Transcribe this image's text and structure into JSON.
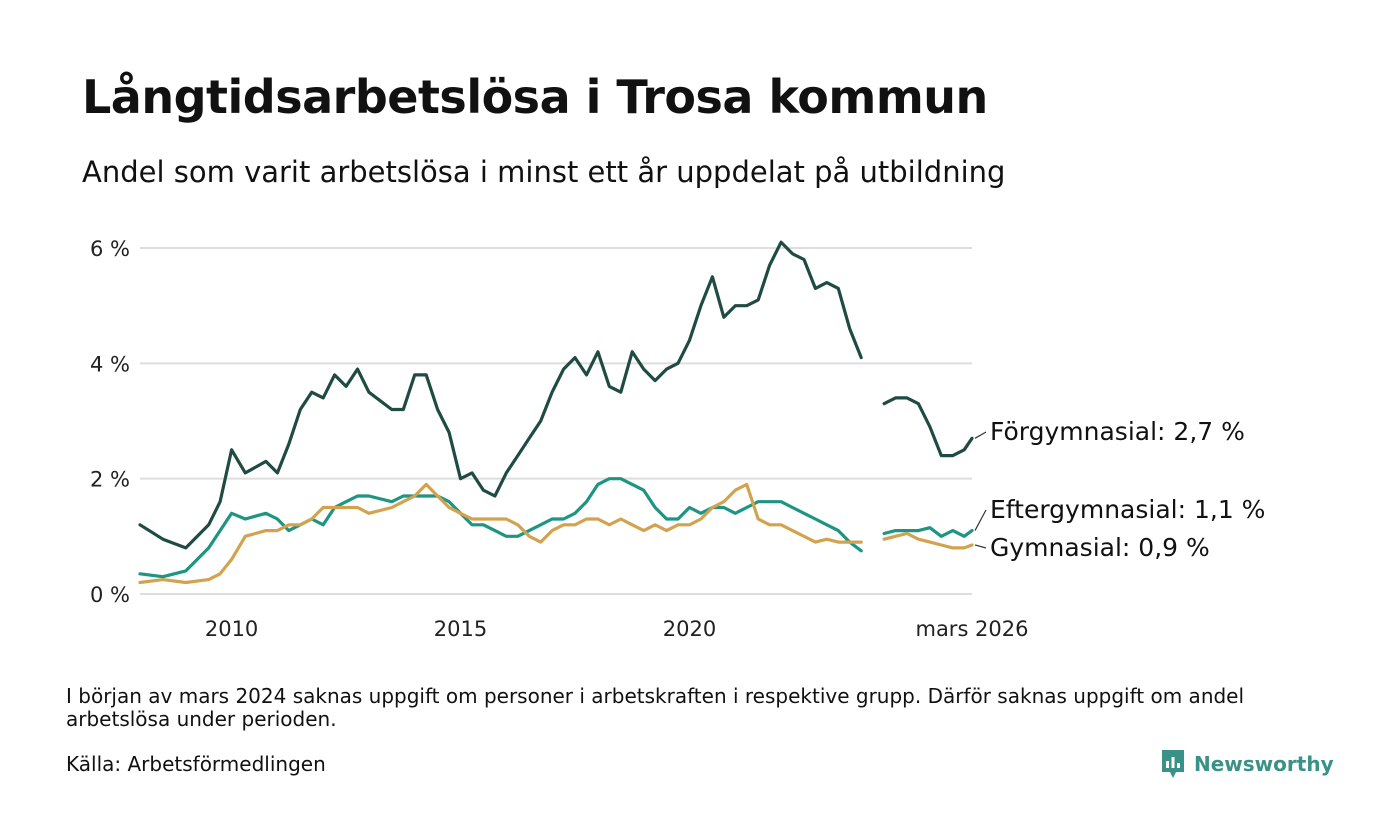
{
  "title": "Långtidsarbetslösa i Trosa kommun",
  "subtitle": "Andel som varit arbetslösa i minst ett år uppdelat på utbildning",
  "note": "I början av mars 2024 saknas uppgift om personer i arbetskraften i respektive grupp. Därför saknas uppgift om andel arbetslösa under perioden.",
  "source": "Källa: Arbetsförmedlingen",
  "brand": {
    "name": "Newsworthy",
    "color": "#3a9187"
  },
  "chart_data": {
    "type": "line",
    "title": "Långtidsarbetslösa i Trosa kommun",
    "xlabel": "",
    "ylabel": "",
    "ylim": [
      0,
      6.2
    ],
    "xlim": [
      2008.0,
      2026.17
    ],
    "yticks": [
      0,
      2,
      4,
      6
    ],
    "ytick_labels": [
      "0 %",
      "2 %",
      "4 %",
      "6 %"
    ],
    "xticks": [
      2010,
      2015,
      2020,
      2026.17
    ],
    "xtick_labels": [
      "2010",
      "2015",
      "2020",
      "mars 2026"
    ],
    "gap": [
      2023.8,
      2024.2
    ],
    "series": [
      {
        "name": "Förgymnasial",
        "label": "Förgymnasial: 2,7 %",
        "color": "#1f4b43",
        "points": [
          [
            2008.0,
            1.2
          ],
          [
            2008.5,
            0.95
          ],
          [
            2009.0,
            0.8
          ],
          [
            2009.5,
            1.2
          ],
          [
            2009.75,
            1.6
          ],
          [
            2010.0,
            2.5
          ],
          [
            2010.3,
            2.1
          ],
          [
            2010.75,
            2.3
          ],
          [
            2011.0,
            2.1
          ],
          [
            2011.25,
            2.6
          ],
          [
            2011.5,
            3.2
          ],
          [
            2011.75,
            3.5
          ],
          [
            2012.0,
            3.4
          ],
          [
            2012.25,
            3.8
          ],
          [
            2012.5,
            3.6
          ],
          [
            2012.75,
            3.9
          ],
          [
            2013.0,
            3.5
          ],
          [
            2013.5,
            3.2
          ],
          [
            2013.75,
            3.2
          ],
          [
            2014.0,
            3.8
          ],
          [
            2014.25,
            3.8
          ],
          [
            2014.5,
            3.2
          ],
          [
            2014.75,
            2.8
          ],
          [
            2015.0,
            2.0
          ],
          [
            2015.25,
            2.1
          ],
          [
            2015.5,
            1.8
          ],
          [
            2015.75,
            1.7
          ],
          [
            2016.0,
            2.1
          ],
          [
            2016.25,
            2.4
          ],
          [
            2016.5,
            2.7
          ],
          [
            2016.75,
            3.0
          ],
          [
            2017.0,
            3.5
          ],
          [
            2017.25,
            3.9
          ],
          [
            2017.5,
            4.1
          ],
          [
            2017.75,
            3.8
          ],
          [
            2018.0,
            4.2
          ],
          [
            2018.25,
            3.6
          ],
          [
            2018.5,
            3.5
          ],
          [
            2018.75,
            4.2
          ],
          [
            2019.0,
            3.9
          ],
          [
            2019.25,
            3.7
          ],
          [
            2019.5,
            3.9
          ],
          [
            2019.75,
            4.0
          ],
          [
            2020.0,
            4.4
          ],
          [
            2020.25,
            5.0
          ],
          [
            2020.5,
            5.5
          ],
          [
            2020.75,
            4.8
          ],
          [
            2021.0,
            5.0
          ],
          [
            2021.25,
            5.0
          ],
          [
            2021.5,
            5.1
          ],
          [
            2021.75,
            5.7
          ],
          [
            2022.0,
            6.1
          ],
          [
            2022.25,
            5.9
          ],
          [
            2022.5,
            5.8
          ],
          [
            2022.75,
            5.3
          ],
          [
            2023.0,
            5.4
          ],
          [
            2023.25,
            5.3
          ],
          [
            2023.5,
            4.6
          ],
          [
            2023.75,
            4.1
          ],
          [
            2024.25,
            3.3
          ],
          [
            2024.5,
            3.4
          ],
          [
            2024.75,
            3.4
          ],
          [
            2025.0,
            3.3
          ],
          [
            2025.25,
            2.9
          ],
          [
            2025.5,
            2.4
          ],
          [
            2025.75,
            2.4
          ],
          [
            2026.0,
            2.5
          ],
          [
            2026.17,
            2.7
          ]
        ]
      },
      {
        "name": "Eftergymnasial",
        "label": "Eftergymnasial: 1,1 %",
        "color": "#1d9582",
        "points": [
          [
            2008.0,
            0.35
          ],
          [
            2008.5,
            0.3
          ],
          [
            2009.0,
            0.4
          ],
          [
            2009.5,
            0.8
          ],
          [
            2009.75,
            1.1
          ],
          [
            2010.0,
            1.4
          ],
          [
            2010.3,
            1.3
          ],
          [
            2010.75,
            1.4
          ],
          [
            2011.0,
            1.3
          ],
          [
            2011.25,
            1.1
          ],
          [
            2011.5,
            1.2
          ],
          [
            2011.75,
            1.3
          ],
          [
            2012.0,
            1.2
          ],
          [
            2012.25,
            1.5
          ],
          [
            2012.5,
            1.6
          ],
          [
            2012.75,
            1.7
          ],
          [
            2013.0,
            1.7
          ],
          [
            2013.5,
            1.6
          ],
          [
            2013.75,
            1.7
          ],
          [
            2014.0,
            1.7
          ],
          [
            2014.25,
            1.7
          ],
          [
            2014.5,
            1.7
          ],
          [
            2014.75,
            1.6
          ],
          [
            2015.0,
            1.4
          ],
          [
            2015.25,
            1.2
          ],
          [
            2015.5,
            1.2
          ],
          [
            2015.75,
            1.1
          ],
          [
            2016.0,
            1.0
          ],
          [
            2016.25,
            1.0
          ],
          [
            2016.5,
            1.1
          ],
          [
            2016.75,
            1.2
          ],
          [
            2017.0,
            1.3
          ],
          [
            2017.25,
            1.3
          ],
          [
            2017.5,
            1.4
          ],
          [
            2017.75,
            1.6
          ],
          [
            2018.0,
            1.9
          ],
          [
            2018.25,
            2.0
          ],
          [
            2018.5,
            2.0
          ],
          [
            2018.75,
            1.9
          ],
          [
            2019.0,
            1.8
          ],
          [
            2019.25,
            1.5
          ],
          [
            2019.5,
            1.3
          ],
          [
            2019.75,
            1.3
          ],
          [
            2020.0,
            1.5
          ],
          [
            2020.25,
            1.4
          ],
          [
            2020.5,
            1.5
          ],
          [
            2020.75,
            1.5
          ],
          [
            2021.0,
            1.4
          ],
          [
            2021.25,
            1.5
          ],
          [
            2021.5,
            1.6
          ],
          [
            2021.75,
            1.6
          ],
          [
            2022.0,
            1.6
          ],
          [
            2022.25,
            1.5
          ],
          [
            2022.5,
            1.4
          ],
          [
            2022.75,
            1.3
          ],
          [
            2023.0,
            1.2
          ],
          [
            2023.25,
            1.1
          ],
          [
            2023.5,
            0.9
          ],
          [
            2023.75,
            0.75
          ],
          [
            2024.25,
            1.05
          ],
          [
            2024.5,
            1.1
          ],
          [
            2024.75,
            1.1
          ],
          [
            2025.0,
            1.1
          ],
          [
            2025.25,
            1.15
          ],
          [
            2025.5,
            1.0
          ],
          [
            2025.75,
            1.1
          ],
          [
            2026.0,
            1.0
          ],
          [
            2026.17,
            1.1
          ]
        ]
      },
      {
        "name": "Gymnasial",
        "label": "Gymnasial: 0,9 %",
        "color": "#d3a24f",
        "points": [
          [
            2008.0,
            0.2
          ],
          [
            2008.5,
            0.25
          ],
          [
            2009.0,
            0.2
          ],
          [
            2009.5,
            0.25
          ],
          [
            2009.75,
            0.35
          ],
          [
            2010.0,
            0.6
          ],
          [
            2010.3,
            1.0
          ],
          [
            2010.75,
            1.1
          ],
          [
            2011.0,
            1.1
          ],
          [
            2011.25,
            1.2
          ],
          [
            2011.5,
            1.2
          ],
          [
            2011.75,
            1.3
          ],
          [
            2012.0,
            1.5
          ],
          [
            2012.25,
            1.5
          ],
          [
            2012.5,
            1.5
          ],
          [
            2012.75,
            1.5
          ],
          [
            2013.0,
            1.4
          ],
          [
            2013.5,
            1.5
          ],
          [
            2013.75,
            1.6
          ],
          [
            2014.0,
            1.7
          ],
          [
            2014.25,
            1.9
          ],
          [
            2014.5,
            1.7
          ],
          [
            2014.75,
            1.5
          ],
          [
            2015.0,
            1.4
          ],
          [
            2015.25,
            1.3
          ],
          [
            2015.5,
            1.3
          ],
          [
            2015.75,
            1.3
          ],
          [
            2016.0,
            1.3
          ],
          [
            2016.25,
            1.2
          ],
          [
            2016.5,
            1.0
          ],
          [
            2016.75,
            0.9
          ],
          [
            2017.0,
            1.1
          ],
          [
            2017.25,
            1.2
          ],
          [
            2017.5,
            1.2
          ],
          [
            2017.75,
            1.3
          ],
          [
            2018.0,
            1.3
          ],
          [
            2018.25,
            1.2
          ],
          [
            2018.5,
            1.3
          ],
          [
            2018.75,
            1.2
          ],
          [
            2019.0,
            1.1
          ],
          [
            2019.25,
            1.2
          ],
          [
            2019.5,
            1.1
          ],
          [
            2019.75,
            1.2
          ],
          [
            2020.0,
            1.2
          ],
          [
            2020.25,
            1.3
          ],
          [
            2020.5,
            1.5
          ],
          [
            2020.75,
            1.6
          ],
          [
            2021.0,
            1.8
          ],
          [
            2021.25,
            1.9
          ],
          [
            2021.5,
            1.3
          ],
          [
            2021.75,
            1.2
          ],
          [
            2022.0,
            1.2
          ],
          [
            2022.25,
            1.1
          ],
          [
            2022.5,
            1.0
          ],
          [
            2022.75,
            0.9
          ],
          [
            2023.0,
            0.95
          ],
          [
            2023.25,
            0.9
          ],
          [
            2023.5,
            0.9
          ],
          [
            2023.75,
            0.9
          ],
          [
            2024.25,
            0.95
          ],
          [
            2024.5,
            1.0
          ],
          [
            2024.75,
            1.05
          ],
          [
            2025.0,
            0.95
          ],
          [
            2025.25,
            0.9
          ],
          [
            2025.5,
            0.85
          ],
          [
            2025.75,
            0.8
          ],
          [
            2026.0,
            0.8
          ],
          [
            2026.17,
            0.85
          ]
        ]
      }
    ]
  }
}
